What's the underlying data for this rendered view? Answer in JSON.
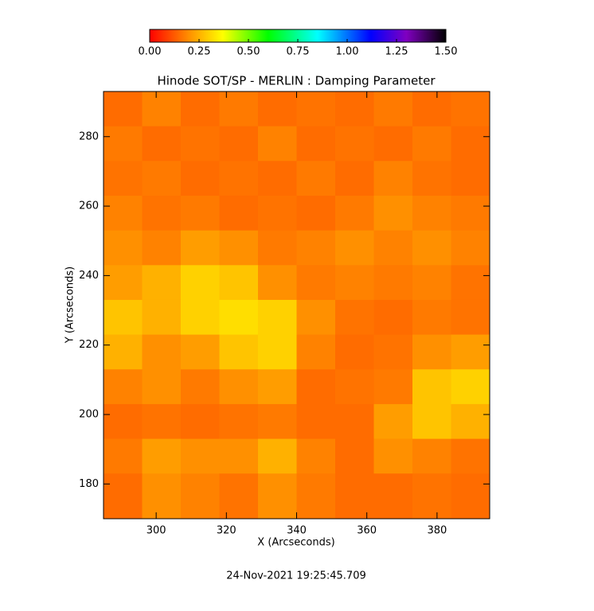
{
  "chart_data": {
    "type": "heatmap",
    "title": "Hinode SOT/SP - MERLIN : Damping Parameter",
    "x_label": "X (Arcseconds)",
    "y_label": "Y (Arcseconds)",
    "footer": "24-Nov-2021 19:25:45.709",
    "xlim": [
      285,
      395
    ],
    "ylim": [
      170,
      293
    ],
    "xticks": [
      300,
      320,
      340,
      360,
      380
    ],
    "yticks": [
      180,
      200,
      220,
      240,
      260,
      280
    ],
    "xbins": [
      285,
      296,
      307,
      318,
      329,
      340,
      351,
      362,
      373,
      384,
      395
    ],
    "ybins": [
      293,
      283,
      273,
      263,
      253,
      243,
      233,
      223,
      213,
      203,
      193,
      183,
      170
    ],
    "z": [
      [
        0.15,
        0.18,
        0.15,
        0.17,
        0.15,
        0.16,
        0.15,
        0.17,
        0.15,
        0.16
      ],
      [
        0.17,
        0.15,
        0.16,
        0.15,
        0.18,
        0.15,
        0.16,
        0.15,
        0.17,
        0.15
      ],
      [
        0.16,
        0.17,
        0.15,
        0.16,
        0.15,
        0.17,
        0.15,
        0.18,
        0.16,
        0.15
      ],
      [
        0.18,
        0.16,
        0.17,
        0.15,
        0.16,
        0.15,
        0.17,
        0.2,
        0.18,
        0.17
      ],
      [
        0.2,
        0.18,
        0.22,
        0.2,
        0.17,
        0.18,
        0.2,
        0.18,
        0.2,
        0.18
      ],
      [
        0.22,
        0.25,
        0.3,
        0.28,
        0.2,
        0.17,
        0.18,
        0.17,
        0.18,
        0.16
      ],
      [
        0.28,
        0.25,
        0.3,
        0.32,
        0.3,
        0.2,
        0.16,
        0.15,
        0.17,
        0.16
      ],
      [
        0.25,
        0.2,
        0.22,
        0.28,
        0.3,
        0.18,
        0.15,
        0.16,
        0.2,
        0.22
      ],
      [
        0.18,
        0.2,
        0.17,
        0.2,
        0.22,
        0.15,
        0.16,
        0.17,
        0.28,
        0.3
      ],
      [
        0.15,
        0.16,
        0.15,
        0.16,
        0.17,
        0.15,
        0.15,
        0.22,
        0.28,
        0.25
      ],
      [
        0.17,
        0.22,
        0.2,
        0.2,
        0.25,
        0.18,
        0.15,
        0.2,
        0.18,
        0.16
      ],
      [
        0.15,
        0.2,
        0.18,
        0.16,
        0.2,
        0.17,
        0.15,
        0.15,
        0.16,
        0.15
      ]
    ],
    "clim": [
      0,
      1.5
    ],
    "cticks": [
      {
        "value": 0,
        "label": "0.00"
      },
      {
        "value": 0.25,
        "label": "0.25"
      },
      {
        "value": 0.5,
        "label": "0.50"
      },
      {
        "value": 0.75,
        "label": "0.75"
      },
      {
        "value": 1,
        "label": "1.00"
      },
      {
        "value": 1.25,
        "label": "1.25"
      },
      {
        "value": 1.5,
        "label": "1.50"
      }
    ],
    "colormap": [
      {
        "value": 0,
        "color": "#ff0000"
      },
      {
        "value": 0.2,
        "color": "#ff9000"
      },
      {
        "value": 0.37,
        "color": "#ffff00"
      },
      {
        "value": 0.6,
        "color": "#00ff00"
      },
      {
        "value": 0.85,
        "color": "#00ffff"
      },
      {
        "value": 1.12,
        "color": "#0000ff"
      },
      {
        "value": 1.3,
        "color": "#8000c0"
      },
      {
        "value": 1.5,
        "color": "#000000"
      }
    ]
  }
}
